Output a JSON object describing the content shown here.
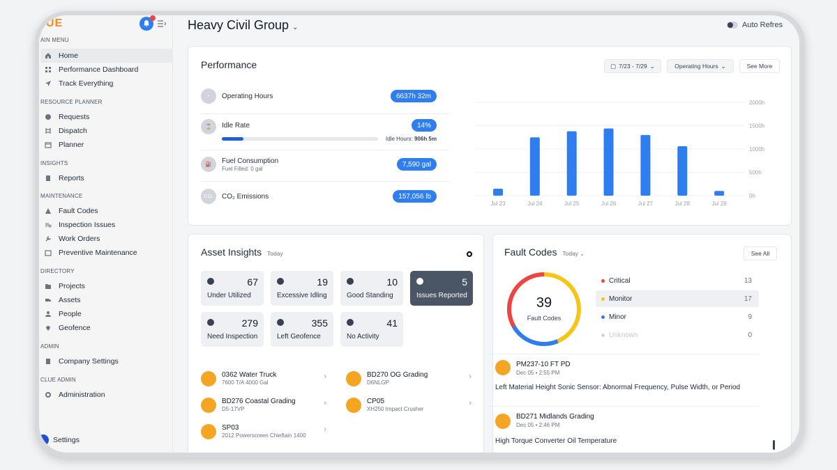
{
  "sidebar": {
    "logo": "UE",
    "main_menu_label": "AIN MENU",
    "main_menu": [
      {
        "label": "Home",
        "icon": "home-icon",
        "active": true
      },
      {
        "label": "Performance Dashboard",
        "icon": "dashboard-icon"
      },
      {
        "label": "Track Everything",
        "icon": "navigation-icon"
      }
    ],
    "resource_planner_label": "RESOURCE PLANNER",
    "resource_planner": [
      {
        "label": "Requests",
        "icon": "requests-icon"
      },
      {
        "label": "Dispatch",
        "icon": "dispatch-icon"
      },
      {
        "label": "Planner",
        "icon": "calendar-icon"
      }
    ],
    "insights_label": "INSIGHTS",
    "insights": [
      {
        "label": "Reports",
        "icon": "reports-icon"
      }
    ],
    "maintenance_label": "MAINTENANCE",
    "maintenance": [
      {
        "label": "Fault Codes",
        "icon": "warning-icon"
      },
      {
        "label": "Inspection Issues",
        "icon": "inspection-icon"
      },
      {
        "label": "Work Orders",
        "icon": "wrench-icon"
      },
      {
        "label": "Preventive Maintenance",
        "icon": "calendar-check-icon"
      }
    ],
    "directory_label": "DIRECTORY",
    "directory": [
      {
        "label": "Projects",
        "icon": "folder-icon"
      },
      {
        "label": "Assets",
        "icon": "truck-icon"
      },
      {
        "label": "People",
        "icon": "people-icon"
      },
      {
        "label": "Geofence",
        "icon": "pin-icon"
      }
    ],
    "admin_label": "ADMIN",
    "admin": [
      {
        "label": "Company Settings",
        "icon": "building-icon"
      }
    ],
    "clue_admin_label": "CLUE ADMIN",
    "clue_admin": [
      {
        "label": "Administration",
        "icon": "gear-icon"
      }
    ],
    "settings_label": "Settings"
  },
  "header": {
    "title": "Heavy Civil Group",
    "auto_refresh": "Auto Refres"
  },
  "performance": {
    "title": "Performance",
    "date_range": "7/23 - 7/29",
    "metric_select": "Operating Hours",
    "see_more": "See More",
    "metrics": [
      {
        "label": "Operating Hours",
        "value": "6637h 32m"
      },
      {
        "label": "Idle Rate",
        "value": "14%",
        "idle_text": "Idle Hours:",
        "idle_value": "906h 5m",
        "progress": 0.14
      },
      {
        "label": "Fuel Consumption",
        "sub": "Fuel Filled: 0 gal",
        "value": "7,590 gal"
      },
      {
        "label": "CO₂ Emissions",
        "value": "157,056 lb"
      }
    ],
    "chart_data": {
      "type": "bar",
      "categories": [
        "Jul 23",
        "Jul 24",
        "Jul 25",
        "Jul 26",
        "Jul 27",
        "Jul 28",
        "Jul 29"
      ],
      "values": [
        150,
        1250,
        1380,
        1440,
        1300,
        1060,
        100
      ],
      "ylim": [
        0,
        2000
      ],
      "yticks": [
        "2000h",
        "1500h",
        "1000h",
        "500h",
        "0h"
      ],
      "color": "#2f7ef0"
    }
  },
  "asset_insights": {
    "title": "Asset Insights",
    "period": "Today",
    "tiles": [
      {
        "count": "67",
        "label": "Under Utilized"
      },
      {
        "count": "19",
        "label": "Excessive Idling"
      },
      {
        "count": "10",
        "label": "Good Standing"
      },
      {
        "count": "5",
        "label": "Issues Reported"
      },
      {
        "count": "279",
        "label": "Need Inspection"
      },
      {
        "count": "355",
        "label": "Left Geofence"
      },
      {
        "count": "41",
        "label": "No Activity"
      }
    ],
    "assets": [
      {
        "name": "0362 Water Truck",
        "model": "7600 T/A 4000 Gal"
      },
      {
        "name": "BD270 OG Grading",
        "model": "D6NLGP"
      },
      {
        "name": "BD276 Coastal Grading",
        "model": "D5-17VP"
      },
      {
        "name": "CP05",
        "model": "XH250 Impact Crusher"
      },
      {
        "name": "SP03",
        "model": "2012 Powerscreen Chieftain 1400"
      }
    ]
  },
  "fault_codes": {
    "title": "Fault Codes",
    "period": "Today",
    "see_all": "See All",
    "total": "39",
    "total_label": "Fault Codes",
    "severities": [
      {
        "label": "Critical",
        "count": "13",
        "color": "#ef4444"
      },
      {
        "label": "Monitor",
        "count": "17",
        "color": "#f5c518"
      },
      {
        "label": "Minor",
        "count": "9",
        "color": "#2f7ef0"
      },
      {
        "label": "Unknown",
        "count": "0",
        "color": "#d1d5db"
      }
    ],
    "events": [
      {
        "name": "PM237-10 FT PD",
        "date": "Dec 05 • 2:55 PM",
        "desc": "Left Material Height Sonic Sensor: Abnormal Frequency, Pulse Width, or Period"
      },
      {
        "name": "BD271 Midlands Grading",
        "date": "Dec 05 • 2:46 PM",
        "desc": "High Torque Converter Oil Temperature"
      }
    ]
  }
}
